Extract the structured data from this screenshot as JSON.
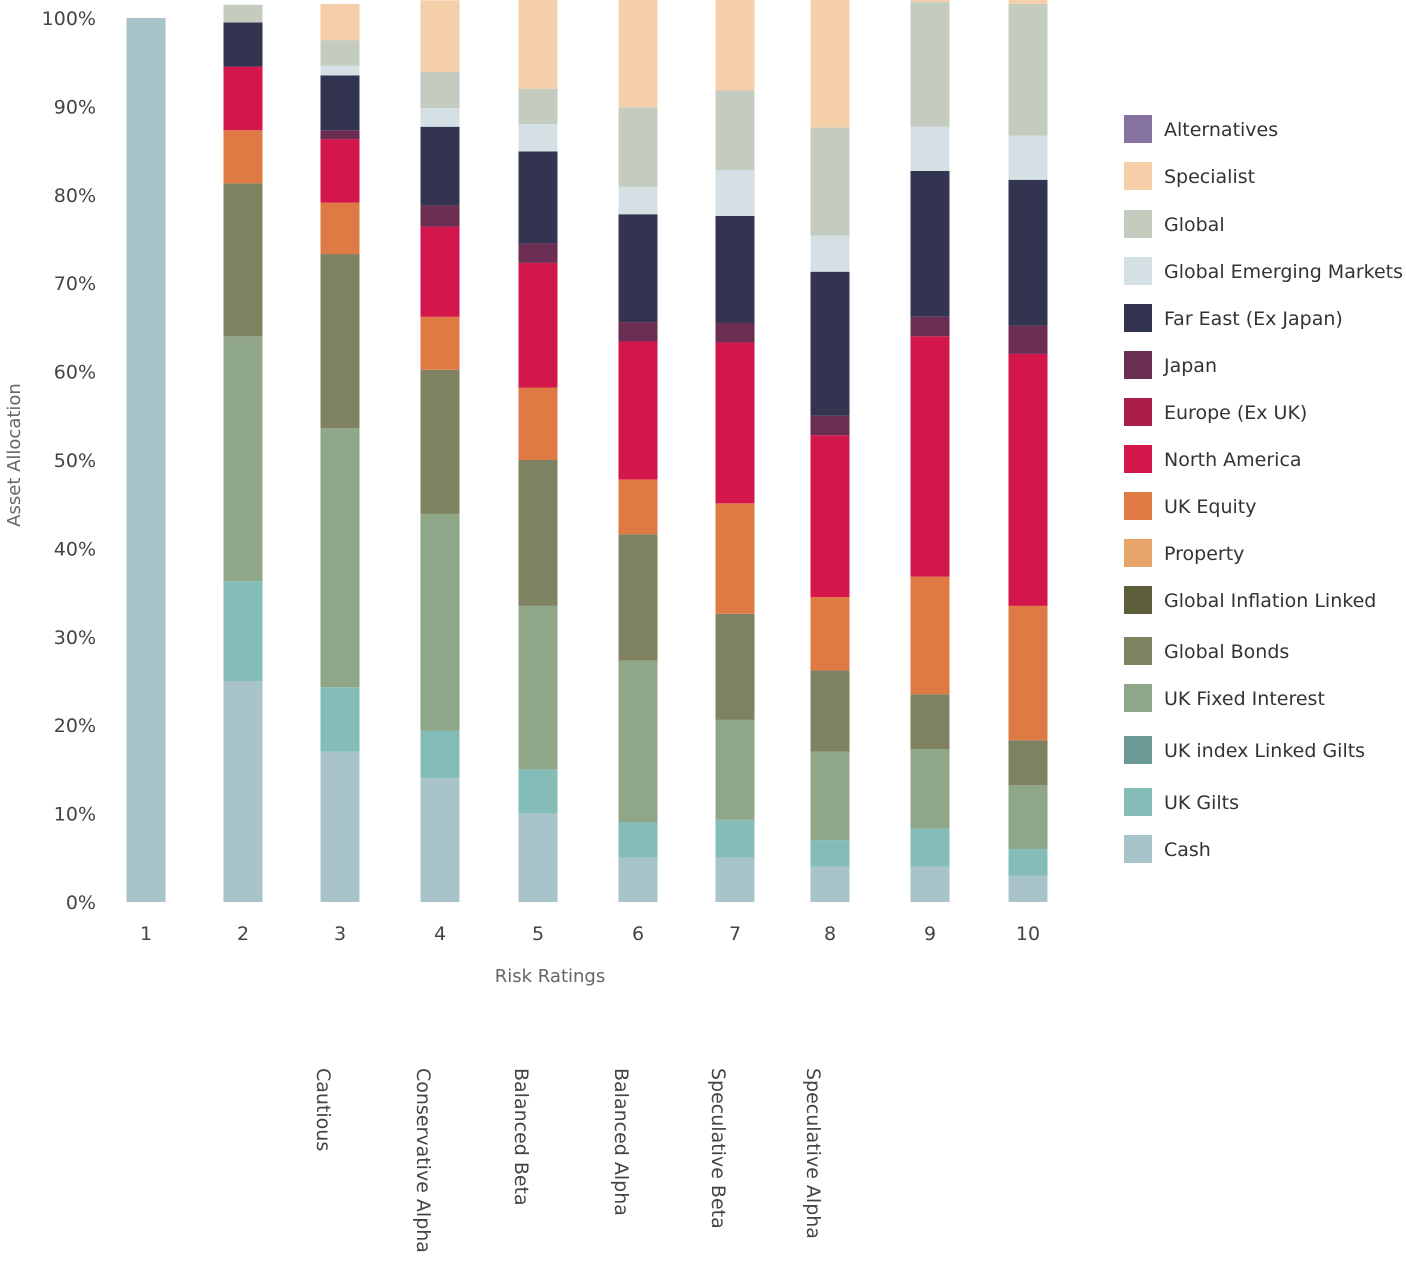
{
  "chart_data": {
    "type": "bar",
    "stacked": true,
    "xlabel": "Risk Ratings",
    "ylabel": "Asset Allocation",
    "ylim": [
      0,
      100
    ],
    "yticks": [
      "0%",
      "10%",
      "20%",
      "30%",
      "40%",
      "50%",
      "60%",
      "70%",
      "80%",
      "90%",
      "100%"
    ],
    "categories": [
      "1",
      "2",
      "3",
      "4",
      "5",
      "6",
      "7",
      "8",
      "9",
      "10"
    ],
    "profile_labels": [
      "",
      "",
      "Cautious",
      "Conservative  Alpha",
      "Balanced Beta",
      "Balanced Alpha",
      "Speculative Beta",
      "Speculative Alpha",
      "",
      ""
    ],
    "legend_position": "right",
    "series": [
      {
        "name": "Cash",
        "color": "#a8c3c9",
        "values": [
          100,
          25,
          17,
          14,
          10,
          5,
          5,
          4,
          4,
          3
        ]
      },
      {
        "name": "UK Gilts",
        "color": "#84bdb8",
        "values": [
          0,
          11.3,
          7.3,
          5.4,
          5,
          4,
          4.3,
          3,
          4.3,
          3
        ]
      },
      {
        "name": "UK index Linked Gilts",
        "color": "#6b9993",
        "values": [
          0,
          0,
          0,
          0,
          0,
          0,
          0,
          0,
          0,
          0
        ]
      },
      {
        "name": "UK Fixed Interest",
        "color": "#8fa688",
        "values": [
          0,
          27.7,
          29.3,
          24.5,
          18.5,
          18.3,
          11.3,
          10,
          9,
          7.2
        ]
      },
      {
        "name": "Global Bonds",
        "color": "#7f8260",
        "values": [
          0,
          17.3,
          19.7,
          16.3,
          16.5,
          14.3,
          12,
          9.2,
          6.2,
          5.1
        ]
      },
      {
        "name": "Global Inflation Linked",
        "color": "#5c5e3a",
        "values": [
          0,
          0,
          0,
          0,
          0,
          0,
          0,
          0,
          0,
          0
        ]
      },
      {
        "name": "Property",
        "color": "#e8a56b",
        "values": [
          0,
          0,
          0,
          0,
          0,
          0,
          0,
          0,
          0,
          0
        ]
      },
      {
        "name": "UK Equity",
        "color": "#e07a45",
        "values": [
          0,
          6,
          5.8,
          6,
          8.2,
          6.2,
          12.5,
          8.3,
          13.3,
          15.2
        ]
      },
      {
        "name": "North America",
        "color": "#d3164b",
        "values": [
          0,
          7.2,
          7.2,
          10.2,
          14.1,
          15.6,
          18.2,
          18.3,
          27.2,
          28.5
        ]
      },
      {
        "name": "Europe (Ex UK)",
        "color": "#ab1c48",
        "values": [
          0,
          0,
          0,
          0,
          0,
          0,
          0,
          0,
          0,
          0
        ]
      },
      {
        "name": "Japan",
        "color": "#6b2d52",
        "values": [
          0,
          0,
          1,
          2.4,
          2.2,
          2.2,
          2.2,
          2.2,
          2.2,
          3.2
        ]
      },
      {
        "name": "Far East (Ex Japan)",
        "color": "#333450",
        "values": [
          0,
          5,
          6.2,
          8.9,
          10.4,
          12.2,
          12.1,
          16.3,
          16.5,
          16.5
        ]
      },
      {
        "name": "Global Emerging Markets",
        "color": "#d4e0e3",
        "values": [
          0,
          0,
          1.1,
          2.1,
          3.1,
          3.1,
          5.2,
          4.1,
          5,
          5
        ]
      },
      {
        "name": "Global",
        "color": "#c4ccc0",
        "values": [
          0,
          2,
          2.9,
          4.1,
          4,
          9,
          9,
          12.2,
          14.1,
          14.9
        ]
      },
      {
        "name": "Specialist",
        "color": "#f4cfaa",
        "values": [
          0,
          0,
          4.1,
          8.1,
          10.3,
          12.3,
          12.2,
          14.5,
          2.1,
          2.2
        ]
      },
      {
        "name": "Alternatives",
        "color": "#85729f",
        "values": [
          0,
          0,
          0,
          0,
          0,
          0,
          0,
          0,
          0,
          0
        ]
      }
    ]
  }
}
